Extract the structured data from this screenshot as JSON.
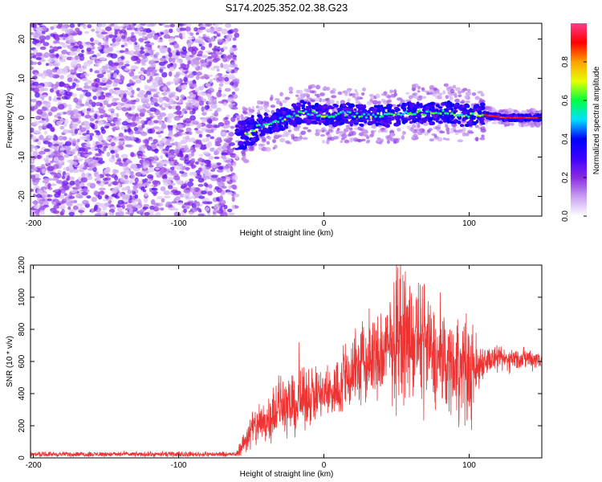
{
  "figure": {
    "title": "S174.2025.352.02.38.G23"
  },
  "chart_data": [
    {
      "type": "heatmap",
      "title": "",
      "xlabel": "Height of straight line (km)",
      "ylabel": "Frequency (Hz)",
      "xlim": [
        -202,
        150
      ],
      "ylim": [
        -25,
        24
      ],
      "x_ticks": [
        -200,
        -100,
        0,
        100
      ],
      "y_ticks": [
        -20,
        -10,
        0,
        10,
        20
      ],
      "noise_region_x": [
        -202,
        -60
      ],
      "signal_trace": [
        {
          "x": -60,
          "y": -5
        },
        {
          "x": -52,
          "y": -4
        },
        {
          "x": -45,
          "y": -2
        },
        {
          "x": -35,
          "y": -1
        },
        {
          "x": -25,
          "y": 0
        },
        {
          "x": -15,
          "y": 1.5
        },
        {
          "x": -5,
          "y": 1
        },
        {
          "x": 5,
          "y": 0.5
        },
        {
          "x": 15,
          "y": 1
        },
        {
          "x": 25,
          "y": 0.5
        },
        {
          "x": 35,
          "y": 0.5
        },
        {
          "x": 45,
          "y": 0.5
        },
        {
          "x": 55,
          "y": 1
        },
        {
          "x": 65,
          "y": 1.5
        },
        {
          "x": 75,
          "y": 1
        },
        {
          "x": 85,
          "y": 1.5
        },
        {
          "x": 95,
          "y": 0.5
        },
        {
          "x": 105,
          "y": 1
        },
        {
          "x": 115,
          "y": 0.5
        },
        {
          "x": 125,
          "y": 0
        },
        {
          "x": 140,
          "y": 0
        },
        {
          "x": 150,
          "y": 0
        }
      ],
      "colorbar": {
        "label": "Normalized spectral amplitude",
        "range": [
          0.0,
          1.0
        ],
        "ticks": [
          0.0,
          0.2,
          0.4,
          0.6,
          0.8
        ],
        "colormap": [
          "#ffffff",
          "#c8a0f0",
          "#8a2be2",
          "#3c00ff",
          "#0000ff",
          "#00e0ff",
          "#00ff40",
          "#e6ff00",
          "#ffa000",
          "#ff0000",
          "#ff3c8c"
        ]
      }
    },
    {
      "type": "line",
      "title": "",
      "xlabel": "Height of straight line (km)",
      "ylabel": "SNR (10 * v/v)",
      "xlim": [
        -202,
        150
      ],
      "ylim": [
        0,
        1200
      ],
      "x_ticks": [
        -200,
        -100,
        0,
        100
      ],
      "y_ticks": [
        0,
        200,
        400,
        600,
        800,
        1000,
        1200
      ],
      "color": "#ee3333",
      "series": [
        {
          "name": "SNR",
          "envelope": [
            {
              "x": -202,
              "low": 5,
              "high": 40
            },
            {
              "x": -60,
              "low": 5,
              "high": 40
            },
            {
              "x": -50,
              "low": 20,
              "high": 320
            },
            {
              "x": -40,
              "low": 60,
              "high": 400
            },
            {
              "x": -30,
              "low": 100,
              "high": 560
            },
            {
              "x": -20,
              "low": 120,
              "high": 520
            },
            {
              "x": -10,
              "low": 180,
              "high": 600
            },
            {
              "x": 0,
              "low": 200,
              "high": 580
            },
            {
              "x": 10,
              "low": 220,
              "high": 640
            },
            {
              "x": 20,
              "low": 250,
              "high": 850
            },
            {
              "x": 30,
              "low": 260,
              "high": 900
            },
            {
              "x": 40,
              "low": 300,
              "high": 950
            },
            {
              "x": 50,
              "low": 300,
              "high": 1200
            },
            {
              "x": 60,
              "low": 320,
              "high": 1100
            },
            {
              "x": 70,
              "low": 300,
              "high": 1100
            },
            {
              "x": 80,
              "low": 260,
              "high": 900
            },
            {
              "x": 90,
              "low": 240,
              "high": 940
            },
            {
              "x": 100,
              "low": 100,
              "high": 900
            },
            {
              "x": 110,
              "low": 500,
              "high": 720
            },
            {
              "x": 120,
              "low": 520,
              "high": 700
            },
            {
              "x": 130,
              "low": 530,
              "high": 700
            },
            {
              "x": 140,
              "low": 540,
              "high": 700
            },
            {
              "x": 150,
              "low": 540,
              "high": 690
            }
          ],
          "peaks": [
            {
              "x": 50,
              "y": 1200
            },
            {
              "x": 56,
              "y": 1160
            },
            {
              "x": 65,
              "y": 1090
            },
            {
              "x": 80,
              "y": 1030
            },
            {
              "x": -17,
              "y": 720
            },
            {
              "x": 98,
              "y": 900
            }
          ]
        }
      ]
    }
  ]
}
